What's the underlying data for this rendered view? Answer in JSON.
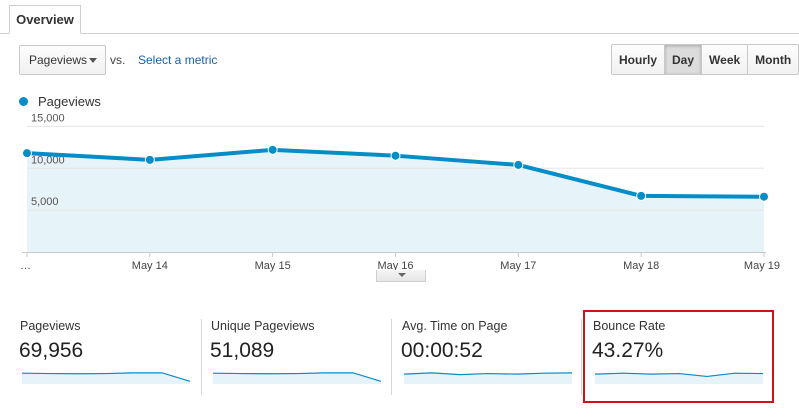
{
  "tabs": [
    {
      "label": "Overview",
      "active": true
    }
  ],
  "controls": {
    "primary_metric": "Pageviews",
    "vs_label": "vs.",
    "secondary_metric_link": "Select a metric",
    "granularity": [
      {
        "label": "Hourly",
        "active": false
      },
      {
        "label": "Day",
        "active": true
      },
      {
        "label": "Week",
        "active": false
      },
      {
        "label": "Month",
        "active": false
      }
    ]
  },
  "legend": {
    "label": "Pageviews",
    "color": "#058dc7"
  },
  "chart_data": {
    "type": "area",
    "x": [
      "…",
      "May 14",
      "May 15",
      "May 16",
      "May 17",
      "May 18",
      "May 19"
    ],
    "series": [
      {
        "name": "Pageviews",
        "values": [
          11800,
          11000,
          12200,
          11500,
          10400,
          6700,
          6600
        ],
        "color": "#058dc7",
        "fill": "#e6f3f9"
      }
    ],
    "y_ticks": [
      5000,
      10000,
      15000
    ],
    "y_tick_labels": [
      "5,000",
      "10,000",
      "15,000"
    ],
    "ylim": [
      0,
      16000
    ],
    "grid": true
  },
  "scorecards": [
    {
      "label": "Pageviews",
      "value": "69,956",
      "spark": [
        0.6,
        0.58,
        0.57,
        0.58,
        0.62,
        0.62,
        0.15
      ]
    },
    {
      "label": "Unique Pageviews",
      "value": "51,089",
      "spark": [
        0.6,
        0.58,
        0.57,
        0.58,
        0.62,
        0.62,
        0.15
      ]
    },
    {
      "label": "Avg. Time on Page",
      "value": "00:00:52",
      "spark": [
        0.55,
        0.62,
        0.52,
        0.58,
        0.55,
        0.6,
        0.62
      ]
    },
    {
      "label": "Bounce Rate",
      "value": "43.27%",
      "spark": [
        0.55,
        0.6,
        0.55,
        0.58,
        0.42,
        0.6,
        0.58
      ],
      "highlighted": true
    }
  ],
  "colors": {
    "accent": "#058dc7",
    "area_fill": "#e6f3f9",
    "highlight_border": "#d0111a",
    "link": "#1a5eab"
  }
}
